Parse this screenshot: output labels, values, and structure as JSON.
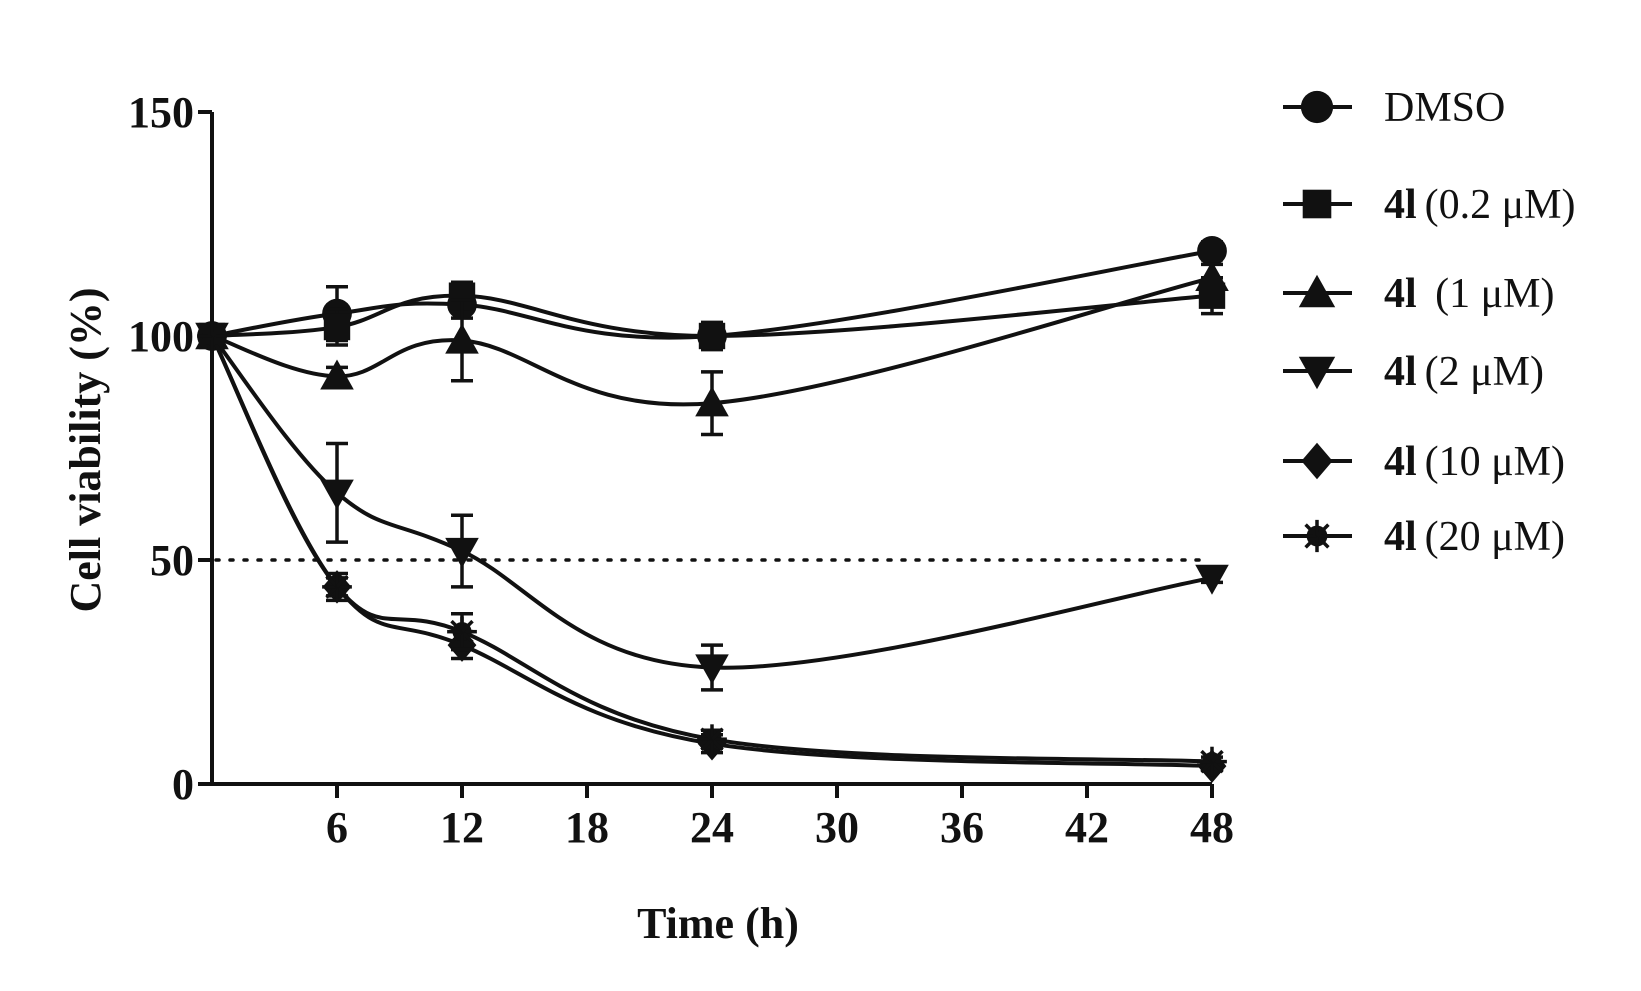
{
  "chart_data": {
    "type": "line",
    "xlabel": "Time (h)",
    "ylabel": "Cell viability (%)",
    "xlim": [
      0,
      48
    ],
    "ylim": [
      0,
      150
    ],
    "x_ticks": [
      6,
      12,
      18,
      24,
      30,
      36,
      42,
      48
    ],
    "y_ticks": [
      0,
      50,
      100,
      150
    ],
    "reference_line": {
      "y": 50,
      "style": "dotted"
    },
    "x": [
      0,
      6,
      12,
      24,
      48
    ],
    "series": [
      {
        "name": "DMSO",
        "compound": "",
        "concentration": "DMSO",
        "marker": "circle",
        "values": [
          100,
          105,
          107,
          100,
          119
        ],
        "errors": [
          0,
          6,
          3,
          3,
          2
        ]
      },
      {
        "name": "4l (0.2 μM)",
        "compound": "4l",
        "concentration": "(0.2 μM)",
        "marker": "square",
        "values": [
          100,
          102,
          109,
          100,
          109
        ],
        "errors": [
          0,
          4,
          3,
          3,
          4
        ]
      },
      {
        "name": "4l (1 μM)",
        "compound": "4l",
        "concentration": " (1 μM)",
        "marker": "triangle-up",
        "values": [
          100,
          91,
          99,
          85,
          113
        ],
        "errors": [
          0,
          2,
          9,
          7,
          3
        ]
      },
      {
        "name": "4l (2 μM)",
        "compound": "4l",
        "concentration": "(2 μM)",
        "marker": "triangle-down",
        "values": [
          100,
          65,
          52,
          26,
          46
        ],
        "errors": [
          0,
          11,
          8,
          5,
          1
        ]
      },
      {
        "name": "4l (10 μM)",
        "compound": "4l",
        "concentration": "(10 μM)",
        "marker": "diamond",
        "values": [
          100,
          44,
          31,
          9,
          4
        ],
        "errors": [
          0,
          3,
          3,
          2,
          1
        ]
      },
      {
        "name": "4l (20 μM)",
        "compound": "4l",
        "concentration": "(20 μM)",
        "marker": "star",
        "values": [
          100,
          44,
          34,
          10,
          5
        ],
        "errors": [
          0,
          2,
          4,
          2,
          1
        ]
      }
    ]
  },
  "colors": {
    "ink": "#111111",
    "background": "#ffffff"
  }
}
